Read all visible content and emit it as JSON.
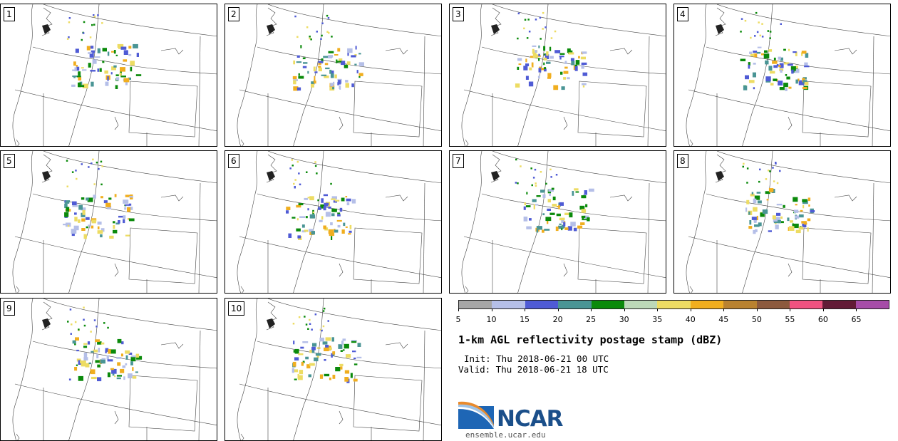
{
  "panels": [
    {
      "label": "1"
    },
    {
      "label": "2"
    },
    {
      "label": "3"
    },
    {
      "label": "4"
    },
    {
      "label": "5"
    },
    {
      "label": "6"
    },
    {
      "label": "7"
    },
    {
      "label": "8"
    },
    {
      "label": "9"
    },
    {
      "label": "10"
    }
  ],
  "colorbar": {
    "colors": [
      "#a6a6a6",
      "#b5bfe8",
      "#4f5bd5",
      "#4a9595",
      "#0b8a0b",
      "#bdd9b8",
      "#eddc63",
      "#f0ae1f",
      "#b98230",
      "#8c5a3e",
      "#ef5280",
      "#621b36",
      "#a64ca8"
    ],
    "ticks": [
      "5",
      "10",
      "15",
      "20",
      "25",
      "30",
      "35",
      "40",
      "45",
      "50",
      "55",
      "60",
      "65"
    ]
  },
  "title": "1-km AGL reflectivity postage stamp (dBZ)",
  "init": "Init: Thu 2018-06-21 00 UTC",
  "valid": "Valid: Thu 2018-06-21 18 UTC",
  "logo": {
    "wordmark": "NCAR",
    "url": "ensemble.ucar.edu"
  }
}
